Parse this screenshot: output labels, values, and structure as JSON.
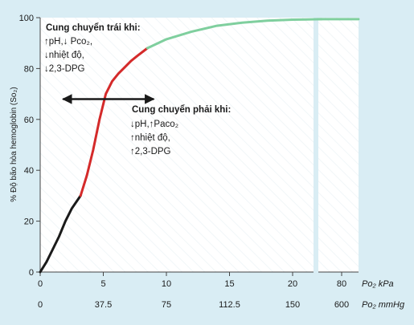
{
  "chart_data": {
    "type": "line",
    "ylabel": "% Độ bão hòa hemoglobin (Sᴏ₂)",
    "ylim": [
      0,
      100
    ],
    "yticks": [
      "0",
      "20",
      "40",
      "60",
      "80",
      "100"
    ],
    "xlim": [
      0,
      24
    ],
    "x_kpa_ticks": [
      {
        "value": 0,
        "label": "0"
      },
      {
        "value": 5,
        "label": "5"
      },
      {
        "value": 10,
        "label": "10"
      },
      {
        "value": 15,
        "label": "15"
      },
      {
        "value": 20,
        "label": "20"
      }
    ],
    "x_mmhg_ticks": [
      {
        "value": 0,
        "label": "0"
      },
      {
        "value": 5,
        "label": "37.5"
      },
      {
        "value": 10,
        "label": "75"
      },
      {
        "value": 15,
        "label": "112.5"
      },
      {
        "value": 20,
        "label": "150"
      }
    ],
    "axis_break": true,
    "after_break_tick": {
      "kpa": "80",
      "mmhg": "600"
    },
    "x_units": {
      "kpa": "Po₂ kPa",
      "mmhg": "Po₂ mmHg"
    },
    "series": [
      {
        "segments": [
          {
            "color": "#1a1a1a",
            "x": [
              0,
              0.5,
              1,
              1.5,
              2,
              2.5,
              3.2
            ],
            "y": [
              0,
              4,
              9,
              14,
              20,
              25,
              30
            ]
          },
          {
            "color": "#d42a2a",
            "x": [
              3.2,
              3.7,
              4.2,
              4.7,
              5.2,
              5.7,
              6.2,
              6.7,
              7.2,
              7.7,
              8.5
            ],
            "y": [
              30,
              38,
              48,
              60,
              70,
              75,
              78,
              80.5,
              83,
              85,
              88
            ]
          },
          {
            "color": "#7fcf9e",
            "x": [
              8.5,
              10,
              12,
              14,
              16,
              18,
              20,
              22.3
            ],
            "y": [
              88,
              91.5,
              94.5,
              96.8,
              98,
              98.8,
              99.2,
              99.4
            ]
          },
          {
            "color": "#7fcf9e",
            "x": [
              22.8,
              24
            ],
            "y": [
              99.4,
              99.4
            ]
          }
        ]
      }
    ],
    "annotations": {
      "left_shift": {
        "title": "Cung chuyển trái khi:",
        "lines": [
          "↑pH,↓ Pco₂,",
          "↓nhiệt độ,",
          "↓2,3-DPG"
        ]
      },
      "right_shift": {
        "title": "Cung chuyển phải khi:",
        "lines": [
          "↓pH,↑Paco₂",
          "↑nhiệt độ,",
          "↑2,3-DPG"
        ]
      }
    },
    "arrow": {
      "x_from": 1.8,
      "x_to": 9.0,
      "y": 68
    },
    "grid": false,
    "colors": {
      "background": "#d9edf4",
      "plot": "#ffffff",
      "axis": "#444444"
    }
  }
}
